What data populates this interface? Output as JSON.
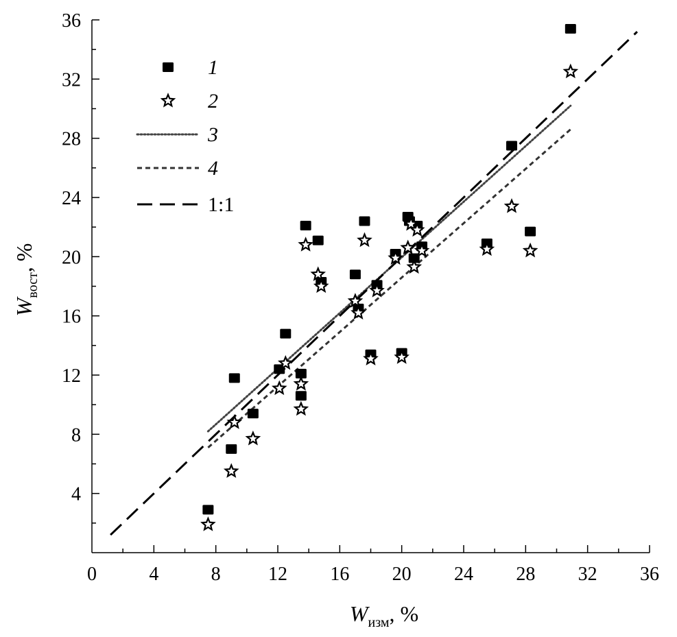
{
  "chart_data": {
    "type": "scatter",
    "xlabel": {
      "var": "W",
      "sub": "изм",
      "suffix": ", %"
    },
    "ylabel": {
      "var": "W",
      "sub": "вост",
      "suffix": ", %"
    },
    "xlim": [
      0,
      36
    ],
    "ylim": [
      0,
      36
    ],
    "x_ticks": [
      0,
      4,
      8,
      12,
      16,
      20,
      24,
      28,
      32,
      36
    ],
    "y_ticks": [
      4,
      8,
      12,
      16,
      20,
      24,
      28,
      32,
      36
    ],
    "x_tick_labels": [
      "0",
      "4",
      "8",
      "12",
      "16",
      "20",
      "24",
      "28",
      "32",
      "36"
    ],
    "y_tick_labels": [
      "4",
      "8",
      "12",
      "16",
      "20",
      "24",
      "28",
      "32",
      "36"
    ],
    "minor_tick_step": 2,
    "grid": false,
    "legend_position": "top-left",
    "series": [
      {
        "name": "1",
        "kind": "scatter",
        "marker": "filled-square",
        "color": "#000000",
        "points": [
          [
            7.5,
            2.9
          ],
          [
            9.0,
            7.0
          ],
          [
            9.2,
            11.8
          ],
          [
            10.4,
            9.4
          ],
          [
            12.1,
            12.4
          ],
          [
            12.5,
            14.8
          ],
          [
            13.5,
            12.1
          ],
          [
            13.5,
            10.6
          ],
          [
            13.8,
            22.1
          ],
          [
            14.6,
            21.1
          ],
          [
            14.8,
            18.3
          ],
          [
            17.0,
            18.8
          ],
          [
            17.2,
            16.5
          ],
          [
            17.6,
            22.4
          ],
          [
            18.0,
            13.4
          ],
          [
            18.4,
            18.1
          ],
          [
            19.6,
            20.2
          ],
          [
            20.0,
            13.5
          ],
          [
            20.4,
            22.7
          ],
          [
            20.5,
            22.4
          ],
          [
            20.8,
            19.9
          ],
          [
            21.0,
            22.1
          ],
          [
            21.3,
            20.7
          ],
          [
            25.5,
            20.9
          ],
          [
            27.1,
            27.5
          ],
          [
            28.3,
            21.7
          ],
          [
            30.9,
            35.4
          ]
        ]
      },
      {
        "name": "2",
        "kind": "scatter",
        "marker": "open-star",
        "color": "#000000",
        "points": [
          [
            7.5,
            1.9
          ],
          [
            9.0,
            5.5
          ],
          [
            9.2,
            8.8
          ],
          [
            10.4,
            7.7
          ],
          [
            12.1,
            11.1
          ],
          [
            12.5,
            12.8
          ],
          [
            13.5,
            11.4
          ],
          [
            13.5,
            9.7
          ],
          [
            13.8,
            20.8
          ],
          [
            14.6,
            18.8
          ],
          [
            14.8,
            18.0
          ],
          [
            17.0,
            17.0
          ],
          [
            17.2,
            16.2
          ],
          [
            17.6,
            21.1
          ],
          [
            18.0,
            13.1
          ],
          [
            18.4,
            17.7
          ],
          [
            19.6,
            19.9
          ],
          [
            20.0,
            13.2
          ],
          [
            20.4,
            20.6
          ],
          [
            20.6,
            22.2
          ],
          [
            20.8,
            19.3
          ],
          [
            21.0,
            21.8
          ],
          [
            21.3,
            20.4
          ],
          [
            25.5,
            20.5
          ],
          [
            27.1,
            23.4
          ],
          [
            28.3,
            20.4
          ],
          [
            30.9,
            32.5
          ]
        ]
      },
      {
        "name": "3",
        "kind": "line",
        "style": "dotted",
        "color": "#444444",
        "points": [
          [
            7.5,
            8.2
          ],
          [
            30.9,
            30.2
          ]
        ]
      },
      {
        "name": "4",
        "kind": "line",
        "style": "dashed",
        "color": "#333333",
        "points": [
          [
            7.5,
            7.1
          ],
          [
            30.9,
            28.6
          ]
        ]
      },
      {
        "name": "1:1",
        "kind": "line",
        "style": "long-dashed",
        "color": "#000000",
        "points": [
          [
            1.2,
            1.2
          ],
          [
            35.2,
            35.2
          ]
        ]
      }
    ]
  }
}
